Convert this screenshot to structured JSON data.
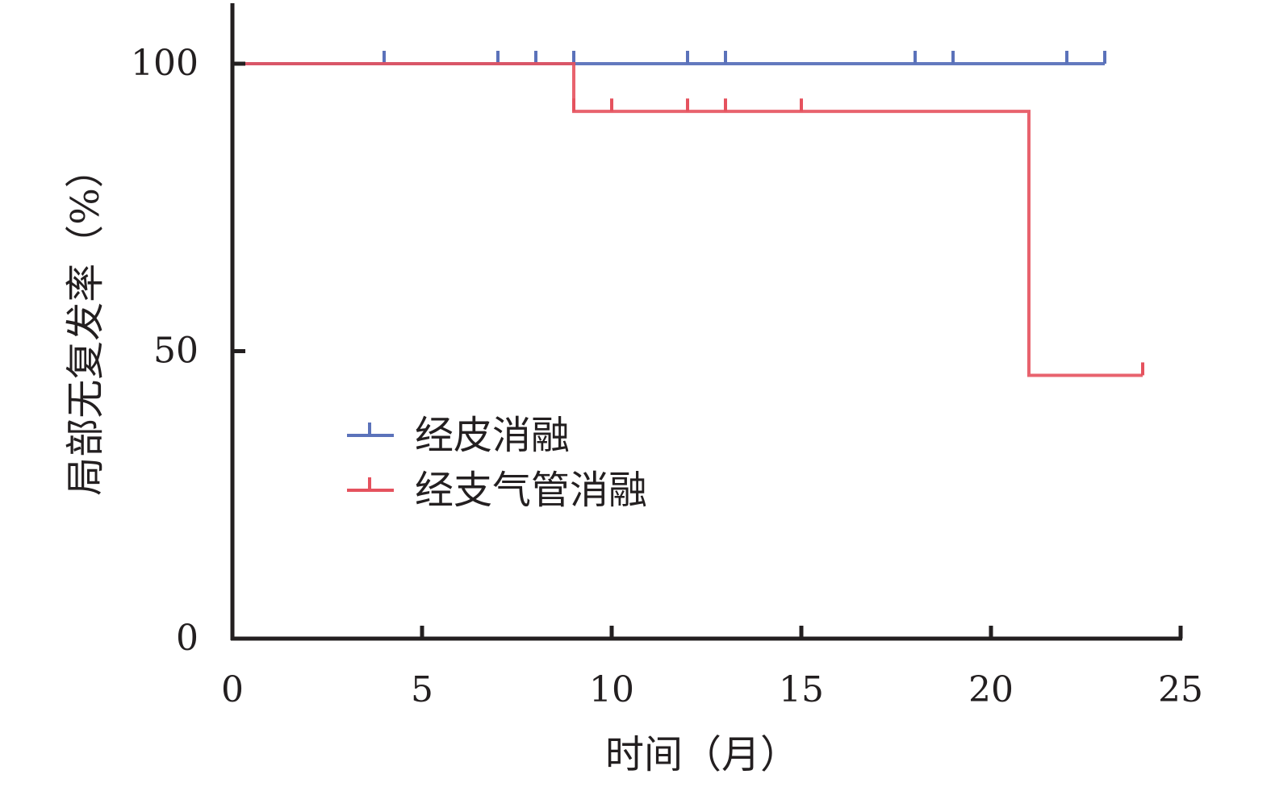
{
  "chart_data": {
    "type": "line",
    "subtype": "kaplan-meier step curve with censoring marks",
    "xlabel": "时间（月）",
    "ylabel": "局部无复发率（%）",
    "xlim": [
      0,
      25
    ],
    "ylim": [
      0,
      100
    ],
    "xticks": [
      0,
      5,
      10,
      15,
      20,
      25
    ],
    "yticks": [
      0,
      50,
      100
    ],
    "grid": false,
    "legend_position": "center-left",
    "series": [
      {
        "name": "经皮消融",
        "color": "#5b72ba",
        "steps": [
          {
            "x": 0,
            "y": 100
          },
          {
            "x": 23,
            "y": 100
          }
        ],
        "censored": [
          4,
          7,
          8,
          9,
          12,
          13,
          18,
          19,
          22,
          23
        ]
      },
      {
        "name": "经支气管消融",
        "color": "#e5525e",
        "steps": [
          {
            "x": 0,
            "y": 100
          },
          {
            "x": 9,
            "y": 91.7
          },
          {
            "x": 21,
            "y": 45.8
          },
          {
            "x": 24,
            "y": 45.8
          }
        ],
        "censored": [
          9,
          10,
          12,
          13,
          15,
          24
        ]
      }
    ]
  }
}
